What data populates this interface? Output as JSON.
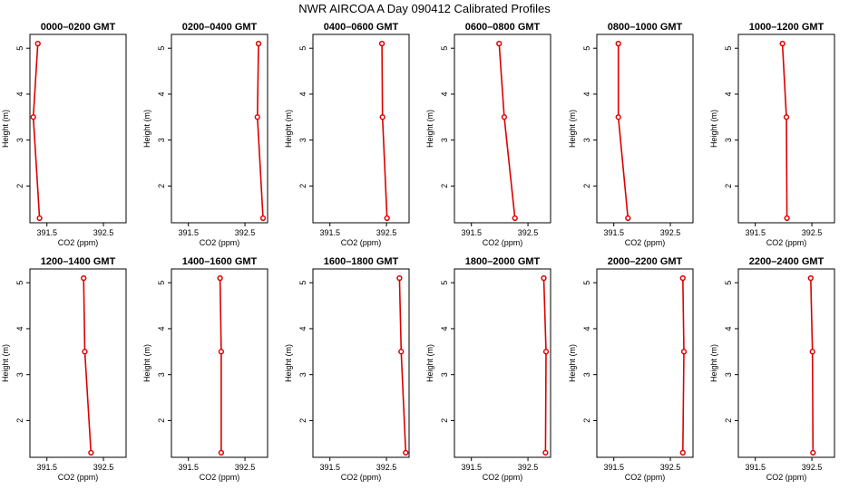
{
  "title": "NWR AIRCOA A  Day 090412  Calibrated Profiles",
  "chart_data": [
    {
      "type": "line",
      "title": "0000–0200 GMT",
      "xlabel": "CO2 (ppm)",
      "ylabel": "Height (m)",
      "xlim": [
        391.2,
        392.9
      ],
      "ylim": [
        1.2,
        5.3
      ],
      "xticks": [
        "391.5",
        "392.5"
      ],
      "yticks": [
        "2",
        "3",
        "4",
        "5"
      ],
      "series": [
        {
          "x": [
            391.34,
            391.26,
            391.37
          ],
          "y": [
            5.1,
            3.5,
            1.3
          ]
        }
      ]
    },
    {
      "type": "line",
      "title": "0200–0400 GMT",
      "xlabel": "CO2 (ppm)",
      "ylabel": "Height (m)",
      "xlim": [
        391.2,
        392.9
      ],
      "ylim": [
        1.2,
        5.3
      ],
      "xticks": [
        "391.5",
        "392.5"
      ],
      "yticks": [
        "2",
        "3",
        "4",
        "5"
      ],
      "series": [
        {
          "x": [
            392.74,
            392.72,
            392.82
          ],
          "y": [
            5.1,
            3.5,
            1.3
          ]
        }
      ]
    },
    {
      "type": "line",
      "title": "0400–0600 GMT",
      "xlabel": "CO2 (ppm)",
      "ylabel": "Height (m)",
      "xlim": [
        391.2,
        392.9
      ],
      "ylim": [
        1.2,
        5.3
      ],
      "xticks": [
        "391.5",
        "392.5"
      ],
      "yticks": [
        "2",
        "3",
        "4",
        "5"
      ],
      "series": [
        {
          "x": [
            392.42,
            392.43,
            392.51
          ],
          "y": [
            5.1,
            3.5,
            1.3
          ]
        }
      ]
    },
    {
      "type": "line",
      "title": "0600–0800 GMT",
      "xlabel": "CO2 (ppm)",
      "ylabel": "Height (m)",
      "xlim": [
        391.2,
        392.9
      ],
      "ylim": [
        1.2,
        5.3
      ],
      "xticks": [
        "391.5",
        "392.5"
      ],
      "yticks": [
        "2",
        "3",
        "4",
        "5"
      ],
      "series": [
        {
          "x": [
            391.99,
            392.08,
            392.27
          ],
          "y": [
            5.1,
            3.5,
            1.3
          ]
        }
      ]
    },
    {
      "type": "line",
      "title": "0800–1000 GMT",
      "xlabel": "CO2 (ppm)",
      "ylabel": "Height (m)",
      "xlim": [
        391.2,
        392.9
      ],
      "ylim": [
        1.2,
        5.3
      ],
      "xticks": [
        "391.5",
        "392.5"
      ],
      "yticks": [
        "2",
        "3",
        "4",
        "5"
      ],
      "series": [
        {
          "x": [
            391.58,
            391.58,
            391.75
          ],
          "y": [
            5.1,
            3.5,
            1.3
          ]
        }
      ]
    },
    {
      "type": "line",
      "title": "1000–1200 GMT",
      "xlabel": "CO2 (ppm)",
      "ylabel": "Height (m)",
      "xlim": [
        391.2,
        392.9
      ],
      "ylim": [
        1.2,
        5.3
      ],
      "xticks": [
        "391.5",
        "392.5"
      ],
      "yticks": [
        "2",
        "3",
        "4",
        "5"
      ],
      "series": [
        {
          "x": [
            391.98,
            392.05,
            392.06
          ],
          "y": [
            5.1,
            3.5,
            1.3
          ]
        }
      ]
    },
    {
      "type": "line",
      "title": "1200–1400 GMT",
      "xlabel": "CO2 (ppm)",
      "ylabel": "Height (m)",
      "xlim": [
        391.2,
        392.9
      ],
      "ylim": [
        1.2,
        5.3
      ],
      "xticks": [
        "391.5",
        "392.5"
      ],
      "yticks": [
        "2",
        "3",
        "4",
        "5"
      ],
      "series": [
        {
          "x": [
            392.15,
            392.17,
            392.28
          ],
          "y": [
            5.1,
            3.5,
            1.3
          ]
        }
      ]
    },
    {
      "type": "line",
      "title": "1400–1600 GMT",
      "xlabel": "CO2 (ppm)",
      "ylabel": "Height (m)",
      "xlim": [
        391.2,
        392.9
      ],
      "ylim": [
        1.2,
        5.3
      ],
      "xticks": [
        "391.5",
        "392.5"
      ],
      "yticks": [
        "2",
        "3",
        "4",
        "5"
      ],
      "series": [
        {
          "x": [
            392.06,
            392.08,
            392.08
          ],
          "y": [
            5.1,
            3.5,
            1.3
          ]
        }
      ]
    },
    {
      "type": "line",
      "title": "1600–1800 GMT",
      "xlabel": "CO2 (ppm)",
      "ylabel": "Height (m)",
      "xlim": [
        391.2,
        392.9
      ],
      "ylim": [
        1.2,
        5.3
      ],
      "xticks": [
        "391.5",
        "392.5"
      ],
      "yticks": [
        "2",
        "3",
        "4",
        "5"
      ],
      "series": [
        {
          "x": [
            392.73,
            392.76,
            392.84
          ],
          "y": [
            5.1,
            3.5,
            1.3
          ]
        }
      ]
    },
    {
      "type": "line",
      "title": "1800–2000 GMT",
      "xlabel": "CO2 (ppm)",
      "ylabel": "Height (m)",
      "xlim": [
        391.2,
        392.9
      ],
      "ylim": [
        1.2,
        5.3
      ],
      "xticks": [
        "391.5",
        "392.5"
      ],
      "yticks": [
        "2",
        "3",
        "4",
        "5"
      ],
      "series": [
        {
          "x": [
            392.78,
            392.82,
            392.81
          ],
          "y": [
            5.1,
            3.5,
            1.3
          ]
        }
      ]
    },
    {
      "type": "line",
      "title": "2000–2200 GMT",
      "xlabel": "CO2 (ppm)",
      "ylabel": "Height (m)",
      "xlim": [
        391.2,
        392.9
      ],
      "ylim": [
        1.2,
        5.3
      ],
      "xticks": [
        "391.5",
        "392.5"
      ],
      "yticks": [
        "2",
        "3",
        "4",
        "5"
      ],
      "series": [
        {
          "x": [
            392.72,
            392.74,
            392.72
          ],
          "y": [
            5.1,
            3.5,
            1.3
          ]
        }
      ]
    },
    {
      "type": "line",
      "title": "2200–2400 GMT",
      "xlabel": "CO2 (ppm)",
      "ylabel": "Height (m)",
      "xlim": [
        391.2,
        392.9
      ],
      "ylim": [
        1.2,
        5.3
      ],
      "xticks": [
        "391.5",
        "392.5"
      ],
      "yticks": [
        "2",
        "3",
        "4",
        "5"
      ],
      "series": [
        {
          "x": [
            392.48,
            392.51,
            392.52
          ],
          "y": [
            5.1,
            3.5,
            1.3
          ]
        }
      ]
    }
  ],
  "colors": {
    "series": "#dd0000",
    "point_fill": "#ffffff",
    "axes": "#000000"
  }
}
